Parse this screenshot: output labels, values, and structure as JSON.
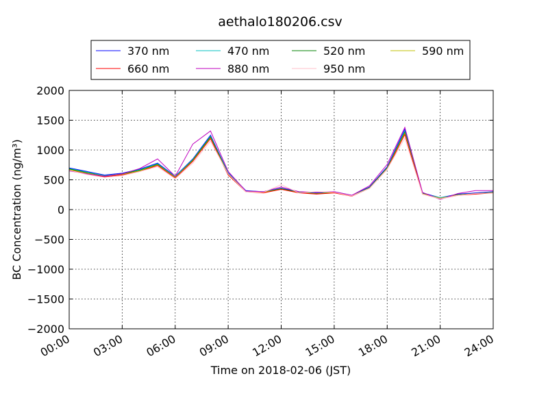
{
  "chart_data": {
    "type": "line",
    "title": "aethalo180206.csv",
    "xlabel": "Time on 2018-02-06 (JST)",
    "ylabel": "BC Concentration (ng/m³)",
    "ylim": [
      -2000,
      2000
    ],
    "xlim_hours": [
      0,
      24
    ],
    "grid": true,
    "legend": "top",
    "x_tick_labels": [
      "00:00",
      "03:00",
      "06:00",
      "09:00",
      "12:00",
      "15:00",
      "18:00",
      "21:00",
      "24:00"
    ],
    "y_tick_labels": [
      "2000",
      "1500",
      "1000",
      "500",
      "0",
      "−500",
      "−1000",
      "−1500",
      "−2000"
    ],
    "y_ticks": [
      2000,
      1500,
      1000,
      500,
      0,
      -500,
      -1000,
      -1500,
      -2000
    ],
    "x_hours": [
      0,
      1,
      2,
      3,
      4,
      5,
      6,
      7,
      8,
      9,
      10,
      11,
      12,
      13,
      14,
      15,
      16,
      17,
      18,
      19,
      20,
      21,
      22,
      23,
      24
    ],
    "series": [
      {
        "name": "370 nm",
        "color": "#0000ff",
        "values": [
          700,
          640,
          580,
          610,
          680,
          780,
          560,
          850,
          1250,
          620,
          320,
          300,
          360,
          300,
          280,
          300,
          240,
          380,
          720,
          1350,
          280,
          200,
          260,
          280,
          300
        ]
      },
      {
        "name": "470 nm",
        "color": "#00bfbf",
        "values": [
          690,
          630,
          570,
          600,
          670,
          770,
          550,
          840,
          1230,
          610,
          310,
          300,
          350,
          290,
          270,
          290,
          235,
          370,
          700,
          1320,
          270,
          200,
          250,
          270,
          290
        ]
      },
      {
        "name": "520 nm",
        "color": "#008000",
        "values": [
          680,
          620,
          560,
          600,
          660,
          760,
          540,
          830,
          1220,
          600,
          310,
          290,
          350,
          290,
          270,
          290,
          230,
          370,
          700,
          1300,
          270,
          190,
          250,
          270,
          290
        ]
      },
      {
        "name": "590 nm",
        "color": "#bfbf00",
        "values": [
          670,
          610,
          560,
          590,
          650,
          750,
          540,
          820,
          1200,
          590,
          300,
          290,
          340,
          285,
          265,
          285,
          230,
          360,
          690,
          1280,
          265,
          190,
          245,
          265,
          285
        ]
      },
      {
        "name": "660 nm",
        "color": "#ff0000",
        "values": [
          660,
          600,
          550,
          580,
          640,
          740,
          530,
          810,
          1190,
          580,
          300,
          280,
          340,
          280,
          260,
          280,
          225,
          360,
          680,
          1260,
          260,
          180,
          240,
          260,
          280
        ]
      },
      {
        "name": "880 nm",
        "color": "#bf00bf",
        "values": [
          650,
          600,
          560,
          600,
          690,
          850,
          560,
          1100,
          1320,
          640,
          310,
          300,
          380,
          300,
          290,
          300,
          240,
          400,
          760,
          1380,
          290,
          170,
          270,
          320,
          320
        ]
      },
      {
        "name": "950 nm",
        "color": "#ffc0cb",
        "values": [
          660,
          590,
          540,
          570,
          640,
          720,
          520,
          780,
          1150,
          600,
          300,
          290,
          420,
          280,
          300,
          290,
          230,
          360,
          680,
          1200,
          260,
          180,
          240,
          270,
          280
        ]
      }
    ]
  }
}
